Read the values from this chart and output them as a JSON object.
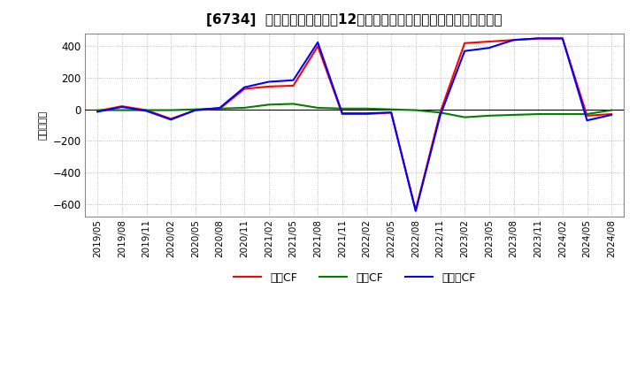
{
  "title": "[6734]  キャッシュフローの12か月移動合計の対前年同期増減額の推移",
  "ylabel": "（百万円）",
  "background_color": "#ffffff",
  "plot_bg_color": "#ffffff",
  "grid_color": "#aaaaaa",
  "x_labels": [
    "2019/05",
    "2019/08",
    "2019/11",
    "2020/02",
    "2020/05",
    "2020/08",
    "2020/11",
    "2021/02",
    "2021/05",
    "2021/08",
    "2021/11",
    "2022/02",
    "2022/05",
    "2022/08",
    "2022/11",
    "2023/02",
    "2023/05",
    "2023/08",
    "2023/11",
    "2024/02",
    "2024/05",
    "2024/08"
  ],
  "operating_cf": [
    -10,
    20,
    -5,
    -60,
    -5,
    5,
    130,
    145,
    150,
    400,
    -30,
    -30,
    -20,
    -640,
    -20,
    420,
    430,
    440,
    450,
    450,
    -40,
    -30
  ],
  "investing_cf": [
    -5,
    -5,
    -5,
    -5,
    0,
    5,
    10,
    30,
    35,
    10,
    5,
    5,
    0,
    -5,
    -20,
    -50,
    -40,
    -35,
    -30,
    -30,
    -30,
    -5
  ],
  "free_cf": [
    -15,
    15,
    -10,
    -65,
    -5,
    10,
    140,
    175,
    185,
    425,
    -25,
    -25,
    -20,
    -645,
    -40,
    370,
    390,
    440,
    450,
    450,
    -70,
    -35
  ],
  "operating_color": "#ff0000",
  "investing_color": "#008000",
  "free_color": "#0000ff",
  "line_width": 1.5,
  "ylim": [
    -680,
    480
  ],
  "yticks": [
    -600,
    -400,
    -200,
    0,
    200,
    400
  ],
  "legend_labels": [
    "営業CF",
    "投資CF",
    "フリーCF"
  ]
}
